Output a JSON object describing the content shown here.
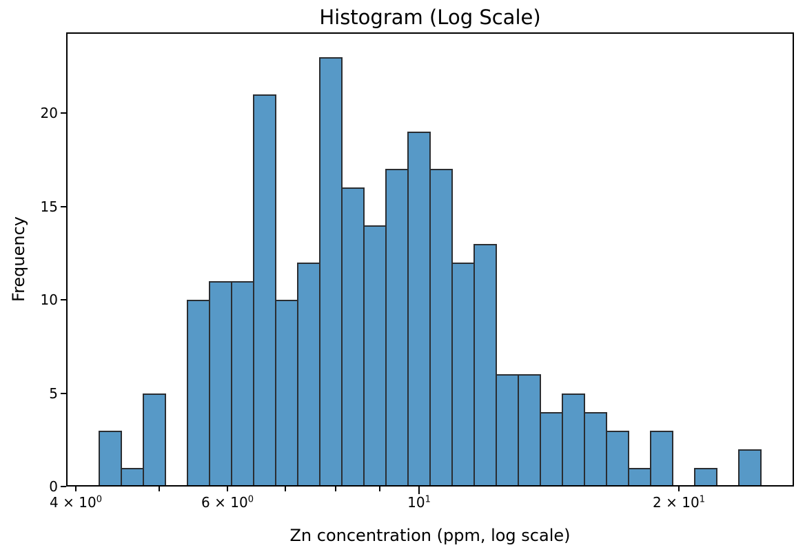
{
  "chart_data": {
    "type": "bar",
    "subtype": "histogram",
    "title": "Histogram (Log Scale)",
    "xlabel": "Zn concentration (ppm, log scale)",
    "ylabel": "Frequency",
    "x_scale": "log",
    "y_scale": "linear",
    "grid": false,
    "legend": null,
    "n_bins": 30,
    "total_count": 250,
    "xlim": [
      3.9,
      27.2
    ],
    "ylim": [
      0,
      24.32
    ],
    "bin_edges": [
      4.26,
      4.518,
      4.793,
      5.083,
      5.392,
      5.719,
      6.066,
      6.433,
      6.824,
      7.237,
      7.676,
      8.142,
      8.636,
      9.159,
      9.715,
      10.304,
      10.924,
      11.586,
      12.288,
      13.034,
      13.824,
      14.662,
      15.551,
      16.494,
      17.494,
      18.554,
      19.679,
      20.872,
      22.137,
      23.479,
      24.9
    ],
    "counts": [
      3,
      1,
      5,
      0,
      10,
      11,
      11,
      21,
      10,
      12,
      23,
      16,
      14,
      17,
      19,
      17,
      12,
      13,
      6,
      6,
      4,
      5,
      4,
      3,
      1,
      3,
      0,
      1,
      0,
      2
    ],
    "x_ticks": [
      {
        "value": 4,
        "labeled": true,
        "major": false,
        "label_base": "4 × 10",
        "label_exp": "0"
      },
      {
        "value": 5,
        "labeled": false,
        "major": false,
        "label_base": "",
        "label_exp": ""
      },
      {
        "value": 6,
        "labeled": true,
        "major": false,
        "label_base": "6 × 10",
        "label_exp": "0"
      },
      {
        "value": 7,
        "labeled": false,
        "major": false,
        "label_base": "",
        "label_exp": ""
      },
      {
        "value": 8,
        "labeled": false,
        "major": false,
        "label_base": "",
        "label_exp": ""
      },
      {
        "value": 9,
        "labeled": false,
        "major": false,
        "label_base": "",
        "label_exp": ""
      },
      {
        "value": 10,
        "labeled": true,
        "major": true,
        "label_base": "10",
        "label_exp": "1"
      },
      {
        "value": 20,
        "labeled": true,
        "major": false,
        "label_base": "2 × 10",
        "label_exp": "1"
      }
    ],
    "y_ticks": [
      {
        "value": 0,
        "label": "0"
      },
      {
        "value": 5,
        "label": "5"
      },
      {
        "value": 10,
        "label": "10"
      },
      {
        "value": 15,
        "label": "15"
      },
      {
        "value": 20,
        "label": "20"
      }
    ],
    "colors": {
      "bar_fill": "#5799c7",
      "bar_edge": "#2a2d31",
      "axis": "#000000",
      "text": "#000000",
      "background": "#ffffff"
    }
  }
}
